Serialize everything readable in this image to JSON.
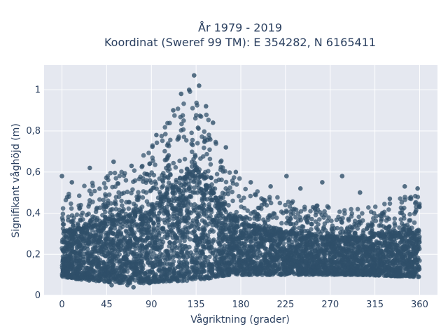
{
  "chart_data": {
    "type": "scatter",
    "title_lines": [
      "År 1979 - 2019",
      "Koordinat (Sweref 99 TM): E 354282, N 6165411"
    ],
    "xlabel": "Vågriktning (grader)",
    "ylabel": "Signifikant våghöjd (m)",
    "xlim": [
      -18,
      378
    ],
    "ylim": [
      0,
      1.12
    ],
    "xticks": [
      0,
      45,
      90,
      135,
      180,
      225,
      270,
      315,
      360
    ],
    "xtick_labels": [
      "0",
      "45",
      "90",
      "135",
      "180",
      "225",
      "270",
      "315",
      "360"
    ],
    "yticks": [
      0,
      0.2,
      0.4,
      0.6,
      0.8,
      1
    ],
    "ytick_labels": [
      "0",
      "0,2",
      "0,4",
      "0,6",
      "0,8",
      "1"
    ],
    "grid": true,
    "marker_color": "#2f4f69",
    "plot_background": "#e5e8f0",
    "envelope": {
      "direction": [
        0,
        30,
        60,
        90,
        110,
        125,
        135,
        145,
        155,
        170,
        200,
        250,
        300,
        360
      ],
      "max_height": [
        0.48,
        0.55,
        0.63,
        0.72,
        0.88,
        0.98,
        1.05,
        0.95,
        0.78,
        0.6,
        0.5,
        0.44,
        0.42,
        0.5
      ],
      "min_height": [
        0.09,
        0.07,
        0.06,
        0.06,
        0.07,
        0.07,
        0.08,
        0.08,
        0.09,
        0.1,
        0.1,
        0.1,
        0.1,
        0.09
      ]
    },
    "sample_points": [
      [
        0,
        0.58
      ],
      [
        10,
        0.55
      ],
      [
        28,
        0.62
      ],
      [
        52,
        0.65
      ],
      [
        70,
        0.63
      ],
      [
        95,
        0.78
      ],
      [
        112,
        0.9
      ],
      [
        120,
        0.98
      ],
      [
        128,
        1.0
      ],
      [
        133,
        1.07
      ],
      [
        138,
        1.02
      ],
      [
        145,
        0.92
      ],
      [
        152,
        0.84
      ],
      [
        165,
        0.72
      ],
      [
        175,
        0.6
      ],
      [
        190,
        0.55
      ],
      [
        210,
        0.53
      ],
      [
        226,
        0.58
      ],
      [
        240,
        0.52
      ],
      [
        262,
        0.55
      ],
      [
        282,
        0.58
      ],
      [
        300,
        0.5
      ],
      [
        330,
        0.47
      ],
      [
        345,
        0.53
      ],
      [
        358,
        0.52
      ],
      [
        66,
        0.05
      ],
      [
        50,
        0.05
      ],
      [
        72,
        0.04
      ]
    ]
  }
}
